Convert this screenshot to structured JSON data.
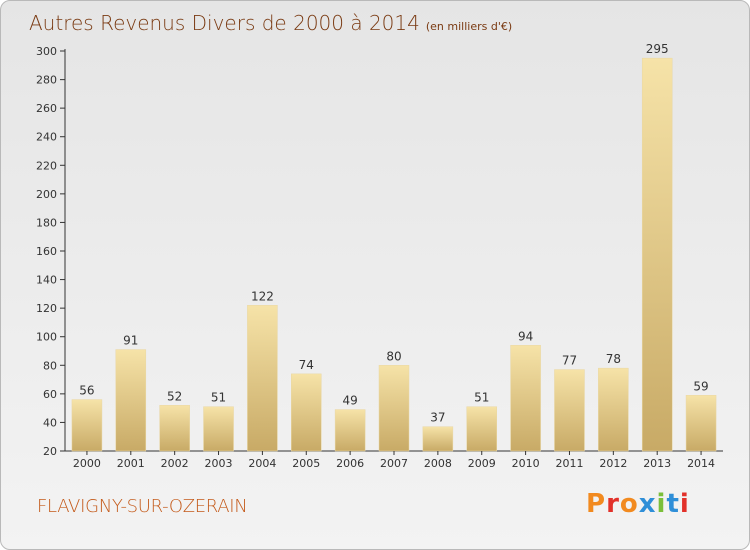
{
  "header": {
    "title": "Autres Revenus Divers de 2000 à 2014",
    "unit": "(en milliers d'€)"
  },
  "footer": {
    "place": "FLAVIGNY-SUR-OZERAIN",
    "logo": "Proxiti",
    "logo_colors": [
      "#f28a1f",
      "#e2312a",
      "#f28a1f",
      "#2f8fd8",
      "#7bbf3a",
      "#2f8fd8",
      "#e2312a"
    ]
  },
  "colors": {
    "bar_light": "#f6e3a8",
    "bar_dark": "#c8aa66",
    "axis": "#333333",
    "grid": "#c8c8c8",
    "label": "#333333"
  },
  "chart_data": {
    "type": "bar",
    "title": "Autres Revenus Divers de 2000 à 2014",
    "subtitle": "(en milliers d'€)",
    "xlabel": "",
    "ylabel": "",
    "categories": [
      "2000",
      "2001",
      "2002",
      "2003",
      "2004",
      "2005",
      "2006",
      "2007",
      "2008",
      "2009",
      "2010",
      "2011",
      "2012",
      "2013",
      "2014"
    ],
    "values": [
      56,
      91,
      52,
      51,
      122,
      74,
      49,
      80,
      37,
      51,
      94,
      77,
      78,
      295,
      59
    ],
    "ylim": [
      20,
      300
    ],
    "yticks": [
      20,
      40,
      60,
      80,
      100,
      120,
      140,
      160,
      180,
      200,
      220,
      240,
      260,
      280,
      300
    ],
    "grid": false,
    "legend": "none"
  }
}
